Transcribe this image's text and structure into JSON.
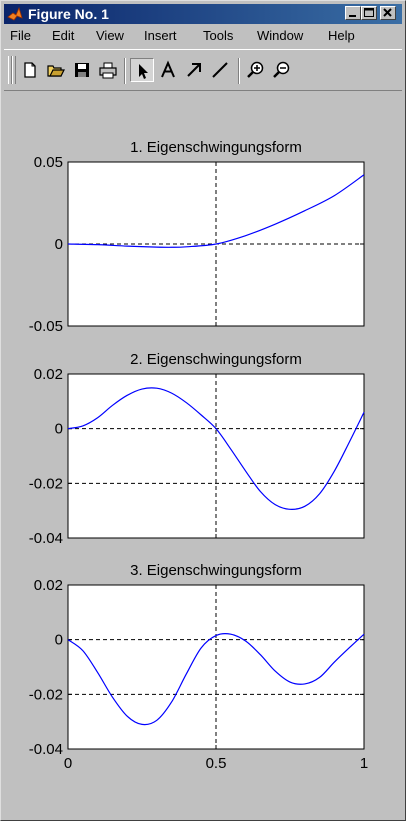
{
  "window": {
    "title": "Figure No. 1"
  },
  "menu": [
    "File",
    "Edit",
    "View",
    "Insert",
    "Tools",
    "Window",
    "Help"
  ],
  "toolbar": {
    "buttons": [
      "new-file-icon",
      "open-folder-icon",
      "save-icon",
      "print-icon",
      "arrow-pointer-icon",
      "text-tool-icon",
      "arrow-tool-icon",
      "line-tool-icon",
      "zoom-in-icon",
      "zoom-out-icon"
    ],
    "active": "arrow-pointer-icon"
  },
  "colors": {
    "line": "#0000ff",
    "title_bar_start": "#0a246a",
    "title_bar_end": "#3a6ea5",
    "background": "#c0c0c0"
  },
  "chart_data": [
    {
      "type": "line",
      "title": "1. Eigenschwingungsform",
      "xlim": [
        0,
        1
      ],
      "ylim": [
        -0.05,
        0.05
      ],
      "yticks": [
        "0.05",
        "0",
        "-0.05"
      ],
      "xticks": [],
      "series": [
        {
          "x": [
            0,
            0.1,
            0.2,
            0.3,
            0.35,
            0.4,
            0.5,
            0.6,
            0.7,
            0.8,
            0.9,
            1.0
          ],
          "y": [
            0,
            -0.0004,
            -0.0013,
            -0.0019,
            -0.002,
            -0.0017,
            0,
            0.0051,
            0.0121,
            0.0203,
            0.0295,
            0.0422
          ]
        }
      ]
    },
    {
      "type": "line",
      "title": "2. Eigenschwingungsform",
      "xlim": [
        0,
        1
      ],
      "ylim": [
        -0.04,
        0.02
      ],
      "yticks": [
        "0.02",
        "0",
        "-0.02",
        "-0.04"
      ],
      "xticks": [],
      "series": [
        {
          "x": [
            0,
            0.05,
            0.1,
            0.15,
            0.2,
            0.25,
            0.3,
            0.35,
            0.4,
            0.45,
            0.5,
            0.55,
            0.6,
            0.65,
            0.7,
            0.75,
            0.8,
            0.85,
            0.9,
            0.95,
            1.0
          ],
          "y": [
            0,
            0.001,
            0.004,
            0.0085,
            0.0122,
            0.0145,
            0.0148,
            0.013,
            0.0095,
            0.005,
            0,
            -0.0075,
            -0.0155,
            -0.023,
            -0.0278,
            -0.0295,
            -0.0284,
            -0.0238,
            -0.0155,
            -0.005,
            0.006
          ]
        }
      ]
    },
    {
      "type": "line",
      "title": "3. Eigenschwingungsform",
      "xlim": [
        0,
        1
      ],
      "ylim": [
        -0.04,
        0.02
      ],
      "yticks": [
        "0.02",
        "0",
        "-0.02",
        "-0.04"
      ],
      "xticks": [
        "0",
        "0.5",
        "1"
      ],
      "series": [
        {
          "x": [
            0,
            0.05,
            0.1,
            0.15,
            0.2,
            0.25,
            0.3,
            0.35,
            0.4,
            0.45,
            0.5,
            0.55,
            0.6,
            0.65,
            0.7,
            0.75,
            0.8,
            0.85,
            0.9,
            0.95,
            1.0
          ],
          "y": [
            0,
            -0.004,
            -0.012,
            -0.021,
            -0.028,
            -0.031,
            -0.0295,
            -0.0228,
            -0.0125,
            -0.003,
            0.0015,
            0.002,
            -0.0005,
            -0.0055,
            -0.0115,
            -0.0155,
            -0.0162,
            -0.0138,
            -0.0082,
            -0.003,
            0.002
          ]
        }
      ]
    }
  ]
}
